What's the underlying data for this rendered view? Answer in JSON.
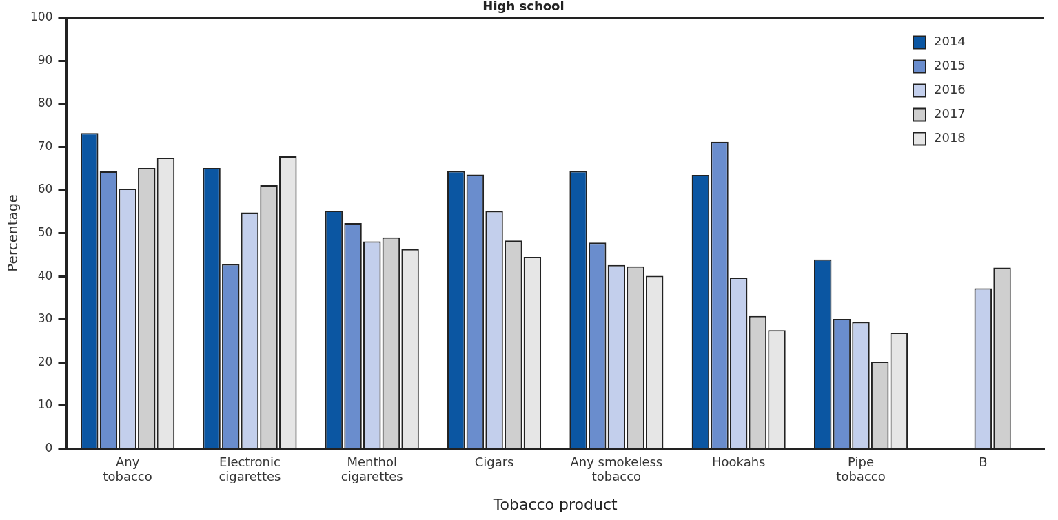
{
  "chart_data": {
    "type": "bar",
    "title": "High school",
    "xlabel": "Tobacco product",
    "ylabel": "Percentage",
    "categories": [
      "Any tobacco",
      "Electronic cigarettes",
      "Menthol cigarettes",
      "Cigars",
      "Any smokeless tobacco",
      "Hookahs",
      "Pipe tobacco",
      "B"
    ],
    "series": [
      {
        "name": "2014",
        "color": "#0b56a2",
        "values": [
          73.2,
          65.1,
          55.2,
          64.4,
          64.4,
          63.5,
          43.9,
          null
        ]
      },
      {
        "name": "2015",
        "color": "#6a8dcd",
        "values": [
          64.3,
          42.8,
          52.3,
          63.6,
          47.8,
          71.2,
          30.1,
          null
        ]
      },
      {
        "name": "2016",
        "color": "#c3cfec",
        "values": [
          60.3,
          54.8,
          48.1,
          55.1,
          42.6,
          39.7,
          29.4,
          37.2
        ]
      },
      {
        "name": "2017",
        "color": "#cfcfcf",
        "values": [
          65.1,
          61.1,
          49.0,
          48.3,
          42.3,
          30.8,
          20.2,
          42.0
        ]
      },
      {
        "name": "2018",
        "color": "#e6e6e6",
        "values": [
          67.5,
          67.8,
          46.3,
          44.5,
          40.1,
          27.5,
          26.9,
          null
        ]
      }
    ],
    "ylim": [
      0,
      100
    ],
    "yticks": [
      0,
      10,
      20,
      30,
      40,
      50,
      60,
      70,
      80,
      90,
      100
    ],
    "grid": false,
    "legend": "top right"
  }
}
